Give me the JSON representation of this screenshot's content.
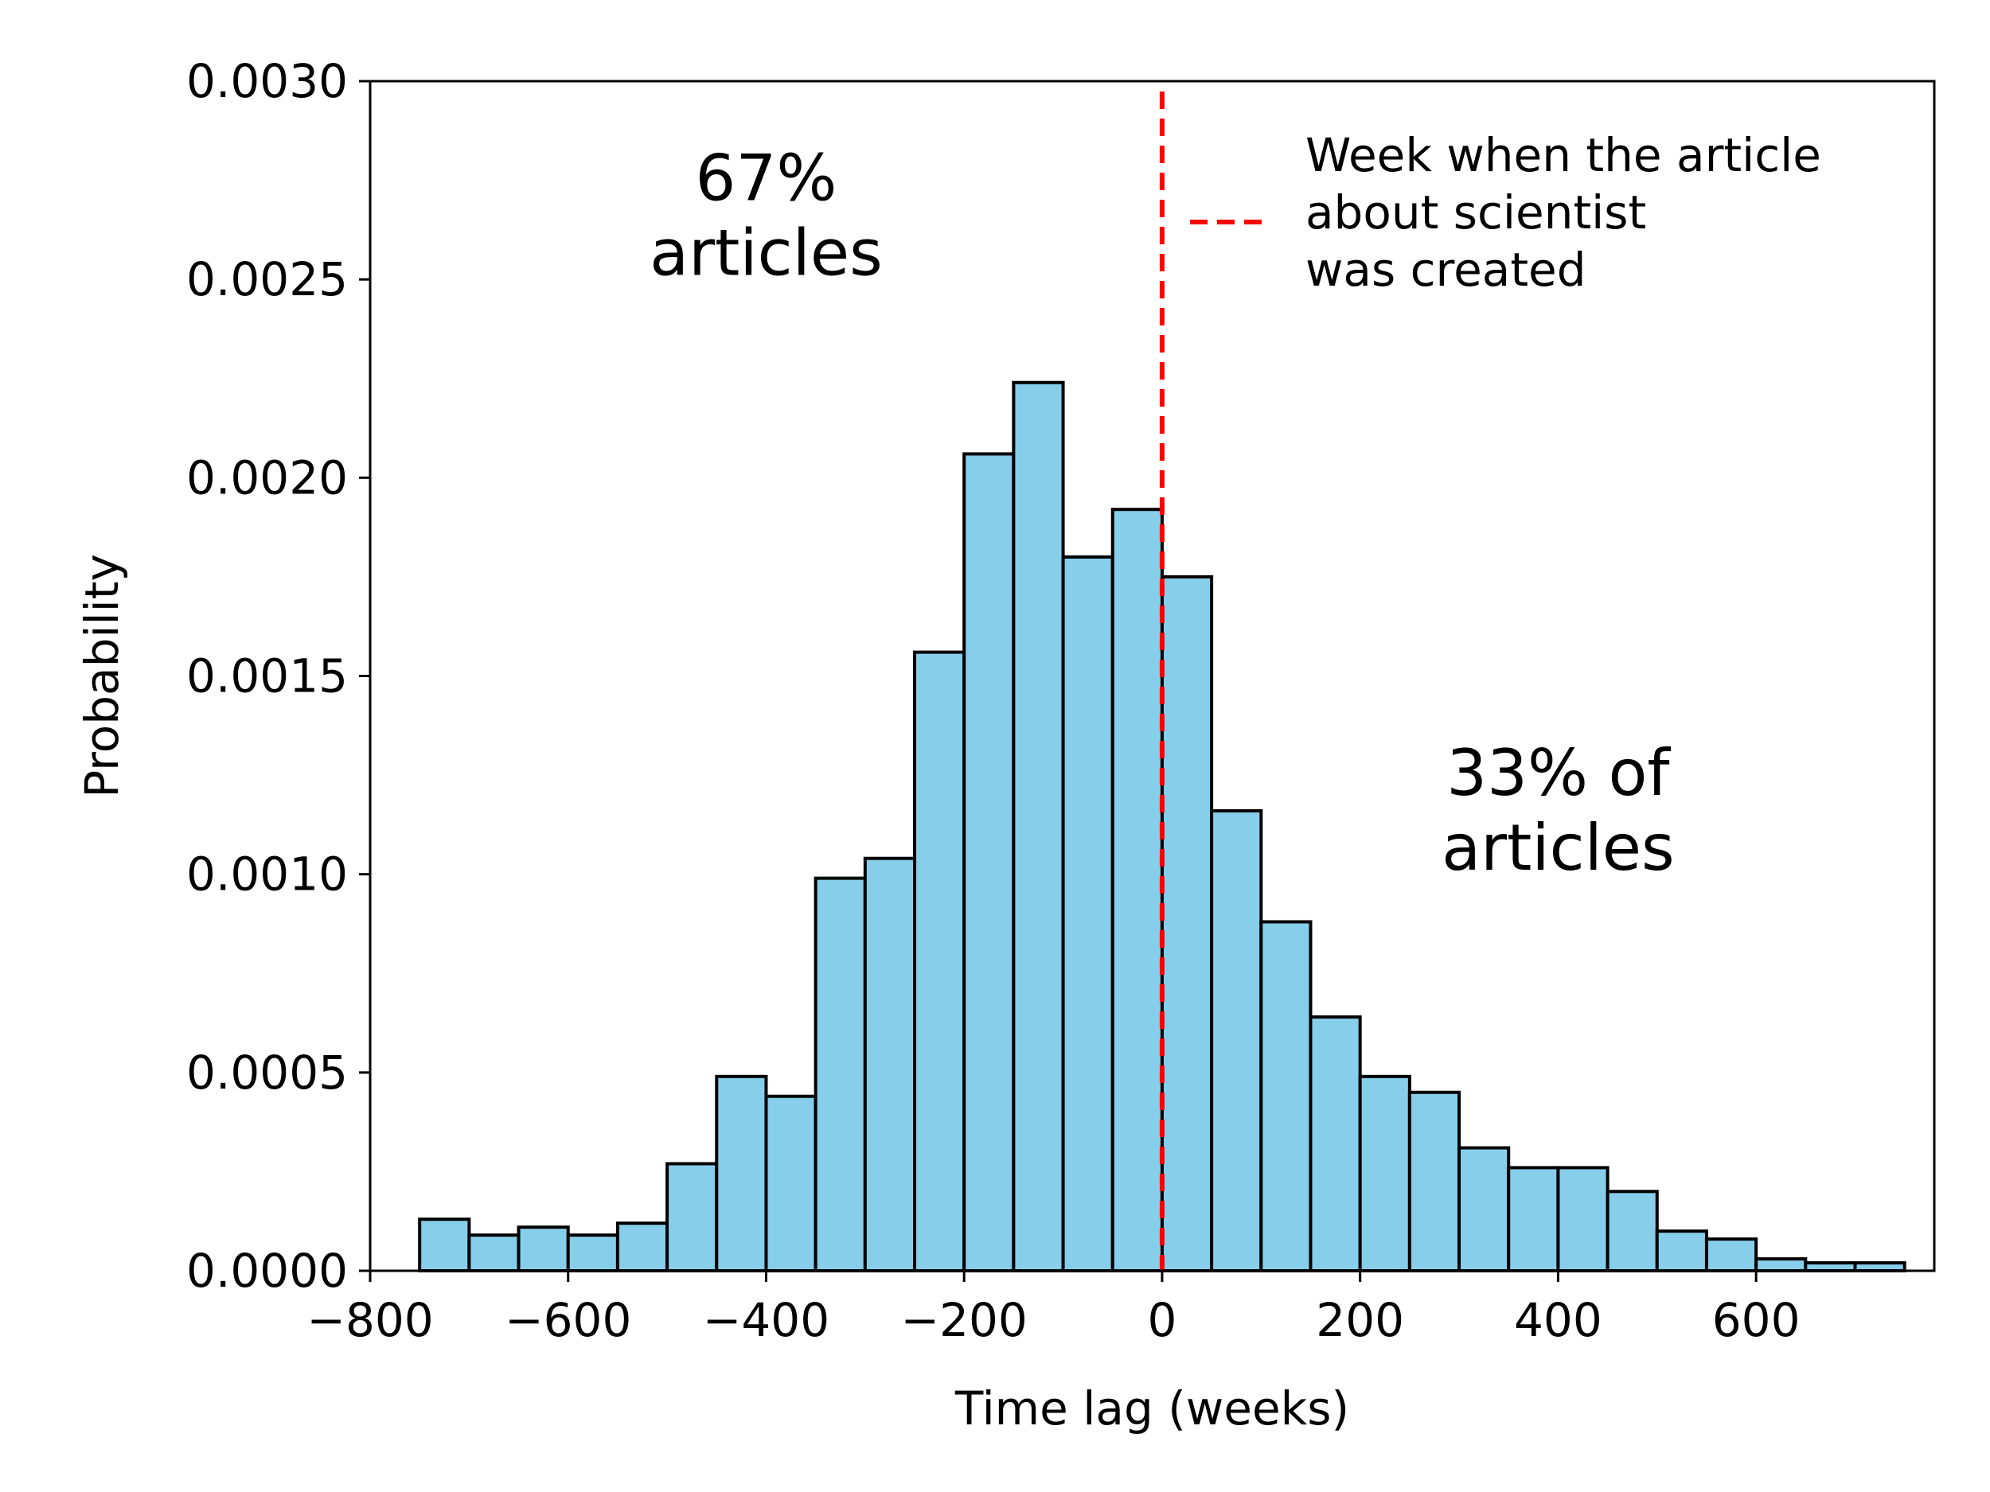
{
  "chart_data": {
    "type": "bar",
    "xlabel": "Time lag (weeks)",
    "ylabel": "Probability",
    "xlim": [
      -800,
      780
    ],
    "ylim": [
      0,
      0.003
    ],
    "xticks": [
      -800,
      -600,
      -400,
      -200,
      0,
      200,
      400,
      600
    ],
    "xtick_labels": [
      "−800",
      "−600",
      "−400",
      "−200",
      "0",
      "200",
      "400",
      "600"
    ],
    "yticks": [
      0,
      0.0005,
      0.001,
      0.0015,
      0.002,
      0.0025,
      0.003
    ],
    "ytick_labels": [
      "0.0000",
      "0.0005",
      "0.0010",
      "0.0015",
      "0.0020",
      "0.0025",
      "0.0030"
    ],
    "bin_edges": [
      -750,
      -700,
      -650,
      -600,
      -550,
      -500,
      -450,
      -400,
      -350,
      -300,
      -250,
      -200,
      -150,
      -100,
      -50,
      0,
      50,
      100,
      150,
      200,
      250,
      300,
      350,
      400,
      450,
      500,
      550,
      600,
      650,
      700,
      750
    ],
    "values": [
      0.00013,
      9e-05,
      0.00011,
      9e-05,
      0.00012,
      0.00027,
      0.00049,
      0.00044,
      0.00099,
      0.00104,
      0.00156,
      0.00206,
      0.00224,
      0.0018,
      0.00192,
      0.00175,
      0.00116,
      0.00088,
      0.00064,
      0.00049,
      0.00045,
      0.00031,
      0.00026,
      0.00026,
      0.0002,
      0.0001,
      8e-05,
      3e-05,
      2e-05,
      2e-05
    ],
    "bar_color": "#87ceeb",
    "edge_color": "#000000",
    "vline": {
      "x": 0,
      "color": "#ff0000",
      "style": "dashed"
    },
    "legend": {
      "placement": "top-right",
      "lines": [
        "Week when the article",
        "about scientist",
        "was created"
      ]
    },
    "annotations": [
      {
        "id": "left",
        "lines": [
          "67%",
          "articles"
        ],
        "x": -400,
        "y": 0.0027
      },
      {
        "id": "right",
        "lines": [
          "33% of",
          "articles"
        ],
        "x": 400,
        "y": 0.0012
      }
    ]
  }
}
